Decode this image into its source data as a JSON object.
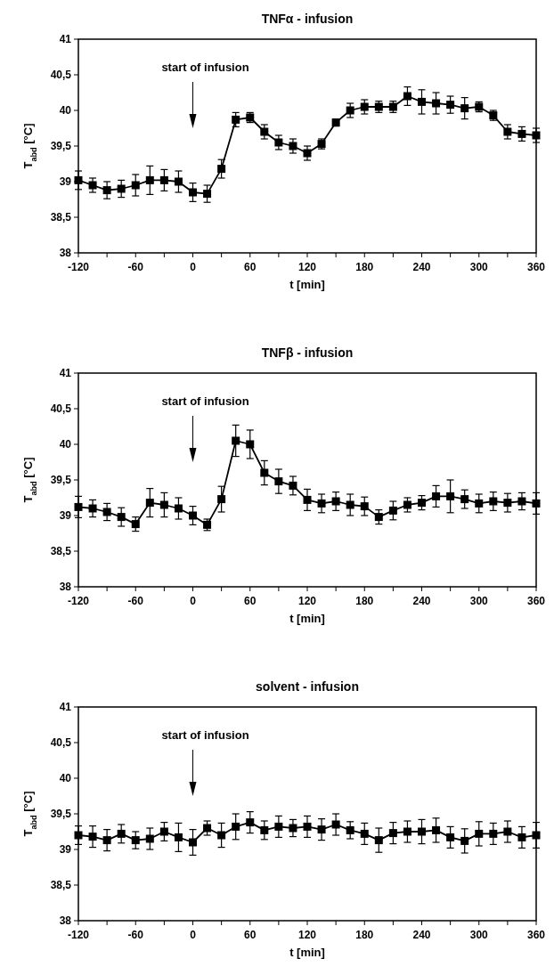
{
  "chart_data": [
    {
      "type": "line",
      "title": "TNFα - infusion",
      "xlabel": "t  [min]",
      "ylabel": "T$_{abd}$ [°C]",
      "marker": "square",
      "line_style": "solid",
      "grid": false,
      "x": [
        -120,
        -105,
        -90,
        -75,
        -60,
        -45,
        -30,
        -15,
        0,
        15,
        30,
        45,
        60,
        75,
        90,
        105,
        120,
        135,
        150,
        165,
        180,
        195,
        210,
        225,
        240,
        255,
        270,
        285,
        300,
        315,
        330,
        345,
        360
      ],
      "series": [
        {
          "color": "#000000",
          "values": [
            39.02,
            38.95,
            38.88,
            38.9,
            38.95,
            39.02,
            39.02,
            39.0,
            38.85,
            38.83,
            39.18,
            39.87,
            39.9,
            39.7,
            39.55,
            39.5,
            39.4,
            39.53,
            39.83,
            40.0,
            40.05,
            40.05,
            40.05,
            40.2,
            40.12,
            40.1,
            40.08,
            40.03,
            40.05,
            39.93,
            39.7,
            39.67,
            39.65
          ],
          "errors": [
            0.13,
            0.1,
            0.12,
            0.12,
            0.15,
            0.2,
            0.15,
            0.15,
            0.13,
            0.12,
            0.13,
            0.1,
            0.07,
            0.1,
            0.1,
            0.1,
            0.1,
            0.07,
            0.05,
            0.1,
            0.1,
            0.08,
            0.08,
            0.13,
            0.17,
            0.15,
            0.12,
            0.15,
            0.07,
            0.07,
            0.1,
            0.1,
            0.1
          ]
        }
      ],
      "xlim": [
        -120,
        360
      ],
      "xticks": [
        -120,
        {
          "value": -90,
          "label": null
        },
        -60,
        {
          "value": -30,
          "label": null
        },
        0,
        {
          "value": 30,
          "label": null
        },
        60,
        {
          "value": 90,
          "label": null
        },
        120,
        {
          "value": 150,
          "label": null
        },
        180,
        {
          "value": 210,
          "label": null
        },
        240,
        {
          "value": 270,
          "label": null
        },
        300,
        {
          "value": 330,
          "label": null
        },
        360
      ],
      "ylim": [
        38,
        41
      ],
      "yticks": [
        38,
        {
          "value": 38.5,
          "label": "38,5"
        },
        39,
        {
          "value": 39.5,
          "label": "39,5"
        },
        40,
        {
          "value": 40.5,
          "label": "40,5"
        },
        41
      ],
      "annotations": [
        "start of infusion"
      ]
    },
    {
      "type": "line",
      "title": "TNFβ - infusion",
      "xlabel": "t  [min]",
      "ylabel": "T$_{abd}$ [°C]",
      "marker": "square",
      "line_style": "solid",
      "grid": false,
      "x": [
        -120,
        -105,
        -90,
        -75,
        -60,
        -45,
        -30,
        -15,
        0,
        15,
        30,
        45,
        60,
        75,
        90,
        105,
        120,
        135,
        150,
        165,
        180,
        195,
        210,
        225,
        240,
        255,
        270,
        285,
        300,
        315,
        330,
        345,
        360
      ],
      "series": [
        {
          "color": "#000000",
          "values": [
            39.12,
            39.1,
            39.05,
            38.98,
            38.88,
            39.18,
            39.15,
            39.1,
            39.0,
            38.87,
            39.23,
            40.05,
            40.0,
            39.6,
            39.48,
            39.42,
            39.22,
            39.17,
            39.2,
            39.15,
            39.13,
            38.98,
            39.07,
            39.15,
            39.18,
            39.27,
            39.27,
            39.23,
            39.17,
            39.2,
            39.18,
            39.2,
            39.17
          ],
          "errors": [
            0.15,
            0.12,
            0.12,
            0.13,
            0.1,
            0.2,
            0.17,
            0.15,
            0.13,
            0.08,
            0.18,
            0.22,
            0.2,
            0.17,
            0.17,
            0.13,
            0.15,
            0.13,
            0.13,
            0.15,
            0.13,
            0.1,
            0.13,
            0.1,
            0.1,
            0.15,
            0.23,
            0.13,
            0.13,
            0.13,
            0.13,
            0.12,
            0.15
          ]
        }
      ],
      "xlim": [
        -120,
        360
      ],
      "xticks": [
        -120,
        {
          "value": -90,
          "label": null
        },
        -60,
        {
          "value": -30,
          "label": null
        },
        0,
        {
          "value": 30,
          "label": null
        },
        60,
        {
          "value": 90,
          "label": null
        },
        120,
        {
          "value": 150,
          "label": null
        },
        180,
        {
          "value": 210,
          "label": null
        },
        240,
        {
          "value": 270,
          "label": null
        },
        300,
        {
          "value": 330,
          "label": null
        },
        360
      ],
      "ylim": [
        38,
        41
      ],
      "yticks": [
        38,
        {
          "value": 38.5,
          "label": "38,5"
        },
        39,
        {
          "value": 39.5,
          "label": "39,5"
        },
        40,
        {
          "value": 40.5,
          "label": "40,5"
        },
        41
      ],
      "annotations": [
        "start of infusion"
      ]
    },
    {
      "type": "line",
      "title": "solvent - infusion",
      "xlabel": "t  [min]",
      "ylabel": "T$_{abd}$ [°C]",
      "marker": "square",
      "line_style": "solid",
      "grid": false,
      "x": [
        -120,
        -105,
        -90,
        -75,
        -60,
        -45,
        -30,
        -15,
        0,
        15,
        30,
        45,
        60,
        75,
        90,
        105,
        120,
        135,
        150,
        165,
        180,
        195,
        210,
        225,
        240,
        255,
        270,
        285,
        300,
        315,
        330,
        345,
        360
      ],
      "series": [
        {
          "color": "#000000",
          "values": [
            39.2,
            39.18,
            39.13,
            39.22,
            39.13,
            39.15,
            39.25,
            39.17,
            39.1,
            39.3,
            39.2,
            39.32,
            39.38,
            39.27,
            39.32,
            39.3,
            39.32,
            39.28,
            39.35,
            39.27,
            39.22,
            39.13,
            39.23,
            39.25,
            39.25,
            39.27,
            39.17,
            39.12,
            39.22,
            39.22,
            39.25,
            39.17,
            39.2
          ],
          "errors": [
            0.13,
            0.15,
            0.15,
            0.13,
            0.12,
            0.15,
            0.13,
            0.2,
            0.18,
            0.1,
            0.17,
            0.18,
            0.15,
            0.13,
            0.15,
            0.12,
            0.15,
            0.15,
            0.15,
            0.12,
            0.15,
            0.17,
            0.15,
            0.15,
            0.17,
            0.17,
            0.15,
            0.17,
            0.17,
            0.15,
            0.15,
            0.15,
            0.18
          ]
        }
      ],
      "xlim": [
        -120,
        360
      ],
      "xticks": [
        -120,
        {
          "value": -90,
          "label": null
        },
        -60,
        {
          "value": -30,
          "label": null
        },
        0,
        {
          "value": 30,
          "label": null
        },
        60,
        {
          "value": 90,
          "label": null
        },
        120,
        {
          "value": 150,
          "label": null
        },
        180,
        {
          "value": 210,
          "label": null
        },
        240,
        {
          "value": 270,
          "label": null
        },
        300,
        {
          "value": 330,
          "label": null
        },
        360
      ],
      "ylim": [
        38,
        41
      ],
      "yticks": [
        38,
        {
          "value": 38.5,
          "label": "38,5"
        },
        39,
        {
          "value": 39.5,
          "label": "39,5"
        },
        40,
        {
          "value": 40.5,
          "label": "40,5"
        },
        41
      ],
      "annotations": [
        "start of infusion"
      ]
    }
  ]
}
